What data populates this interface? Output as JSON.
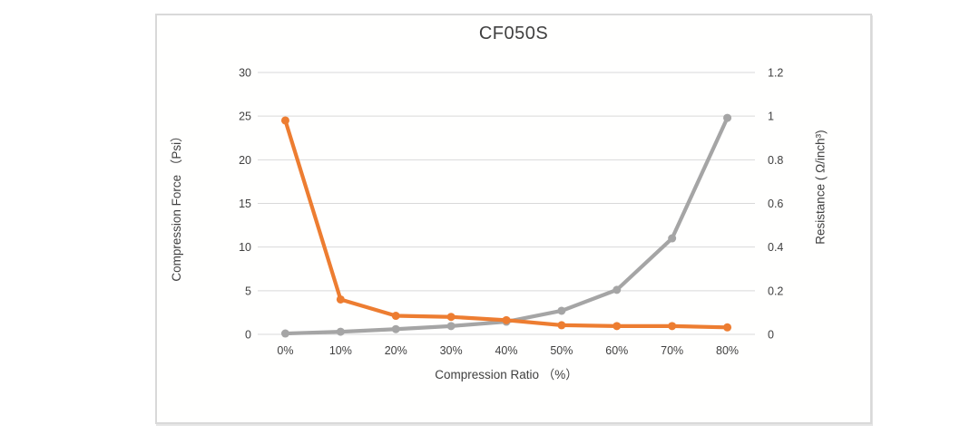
{
  "chart_data": {
    "type": "line",
    "title": "CF050S",
    "xlabel": "Compression Ratio （%）",
    "x_categories": [
      "0%",
      "10%",
      "20%",
      "30%",
      "40%",
      "50%",
      "60%",
      "70%",
      "80%"
    ],
    "left_axis": {
      "label": "Compression Force （Psi）",
      "min": 0,
      "max": 30,
      "ticks": [
        0,
        5,
        10,
        15,
        20,
        25,
        30
      ]
    },
    "right_axis": {
      "label": "Resistance ( Ω/inch³)",
      "min": 0,
      "max": 1.2,
      "ticks": [
        0,
        0.2,
        0.4,
        0.6,
        0.8,
        1,
        1.2
      ]
    },
    "series": [
      {
        "name": "Compression Force",
        "axis": "left",
        "color": "#a5a5a5",
        "values": [
          0.1,
          0.3,
          0.6,
          0.95,
          1.45,
          2.7,
          5.1,
          11,
          24.8
        ]
      },
      {
        "name": "Resistance",
        "axis": "right",
        "color": "#ed7d31",
        "values": [
          0.98,
          0.16,
          0.085,
          0.08,
          0.065,
          0.042,
          0.038,
          0.038,
          0.032
        ]
      }
    ],
    "grid": true,
    "legend_position": "none",
    "colors": {
      "gridline": "#d9d9d9",
      "axis_line": "#d9d9d9",
      "tick_text": "#404040",
      "frame_border": "#d9d9d9",
      "background": "#fffffe"
    }
  }
}
